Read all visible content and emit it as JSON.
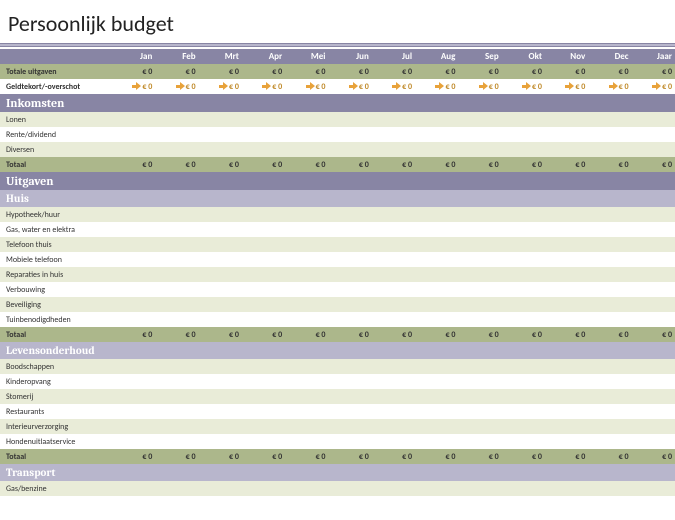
{
  "title": "Persoonlijk budget",
  "months": [
    "Jan",
    "Feb",
    "Mrt",
    "Apr",
    "Mei",
    "Jun",
    "Jul",
    "Aug",
    "Sep",
    "Okt",
    "Nov",
    "Dec",
    "Jaar"
  ],
  "currency_zero": "€ 0",
  "colors": {
    "header_bg": "#8885a4",
    "subheader_bg": "#b8b6cc",
    "stripe_odd": "#e9ecd8",
    "stripe_even": "#ffffff",
    "total_bg": "#acb78b",
    "arrow": "#e8a23a",
    "title_text": "#222222"
  },
  "summary": {
    "expenses_label": "Totale uitgaven",
    "cash_label": "Geldtekort/-overschot"
  },
  "sections": [
    {
      "title": "Inkomsten",
      "rows": [
        "Lonen",
        "Rente/dividend",
        "Diversen"
      ],
      "total_label": "Totaal"
    },
    {
      "title": "Uitgaven",
      "subsections": [
        {
          "title": "Huis",
          "rows": [
            "Hypotheek/huur",
            "Gas, water en elektra",
            "Telefoon thuis",
            "Mobiele telefoon",
            "Reparaties in huis",
            "Verbouwing",
            "Beveiliging",
            "Tuinbenodigdheden"
          ],
          "total_label": "Totaal"
        },
        {
          "title": "Levensonderhoud",
          "rows": [
            "Boodschappen",
            "Kinderopvang",
            "Stomerij",
            "Restaurants",
            "Interieurverzorging",
            "Hondenuitlaatservice"
          ],
          "total_label": "Totaal"
        },
        {
          "title": "Transport",
          "rows": [
            "Gas/benzine"
          ],
          "total_label": null
        }
      ]
    }
  ]
}
